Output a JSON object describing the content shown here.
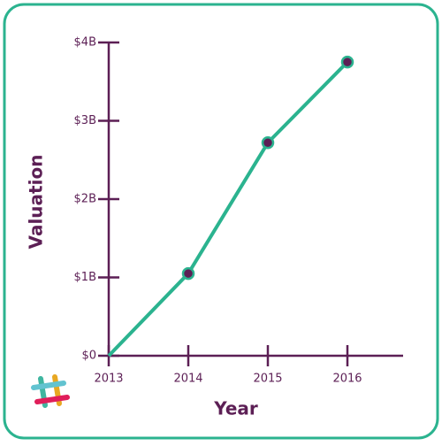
{
  "chart_data": {
    "type": "line",
    "x_label": "Year",
    "y_label": "Valuation",
    "x": [
      2013,
      2014,
      2015,
      2016
    ],
    "series": [
      {
        "name": "Valuation",
        "color": "#2bb38f",
        "values": [
          0,
          1.05,
          2.72,
          3.75
        ]
      }
    ],
    "marker_color": "#5c1f55",
    "xlim": [
      2013,
      2016.7
    ],
    "xticks": [
      2013,
      2014,
      2015,
      2016
    ],
    "ylim": [
      0,
      4
    ],
    "yticks": [
      {
        "value": 0,
        "label": "$0"
      },
      {
        "value": 1,
        "label": "$1B"
      },
      {
        "value": 2,
        "label": "$2B"
      },
      {
        "value": 3,
        "label": "$3B"
      },
      {
        "value": 4,
        "label": "$4B"
      }
    ]
  }
}
